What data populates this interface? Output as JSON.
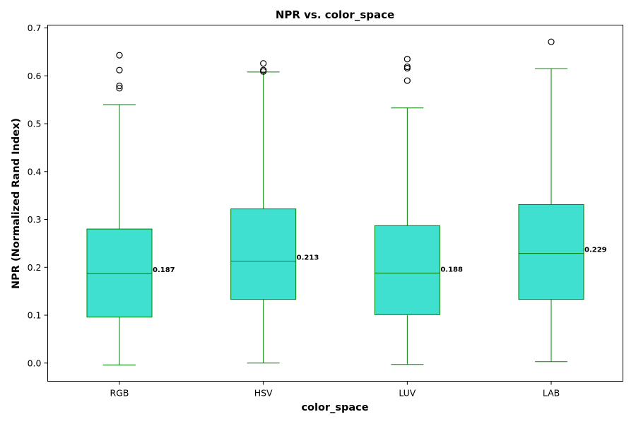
{
  "chart_data": {
    "type": "box",
    "title": "NPR vs. color_space",
    "xlabel": "color_space",
    "ylabel": "NPR (Normalized Rand Index)",
    "ylim": [
      -0.038,
      0.706
    ],
    "yticks": [
      "0.0",
      "0.1",
      "0.2",
      "0.3",
      "0.4",
      "0.5",
      "0.6",
      "0.7"
    ],
    "categories": [
      "RGB",
      "HSV",
      "LUV",
      "LAB"
    ],
    "boxes": [
      {
        "category": "RGB",
        "whisker_low": -0.004,
        "q1": 0.096,
        "median": 0.187,
        "q3": 0.28,
        "whisker_high": 0.54,
        "outliers": [
          0.574,
          0.579,
          0.612,
          0.643
        ],
        "median_label": "0.187"
      },
      {
        "category": "HSV",
        "whisker_low": 0.0,
        "q1": 0.133,
        "median": 0.213,
        "q3": 0.322,
        "whisker_high": 0.608,
        "outliers": [
          0.609,
          0.612,
          0.626
        ],
        "median_label": "0.213"
      },
      {
        "category": "LUV",
        "whisker_low": -0.003,
        "q1": 0.101,
        "median": 0.188,
        "q3": 0.287,
        "whisker_high": 0.533,
        "outliers": [
          0.59,
          0.616,
          0.619,
          0.635
        ],
        "median_label": "0.188"
      },
      {
        "category": "LAB",
        "whisker_low": 0.003,
        "q1": 0.133,
        "median": 0.229,
        "q3": 0.331,
        "whisker_high": 0.615,
        "outliers": [
          0.671
        ],
        "median_label": "0.229"
      }
    ],
    "colors": {
      "box_fill": "#40e0d0",
      "line": "#008000",
      "outlier": "#000000"
    },
    "grid": false,
    "legend": false
  }
}
